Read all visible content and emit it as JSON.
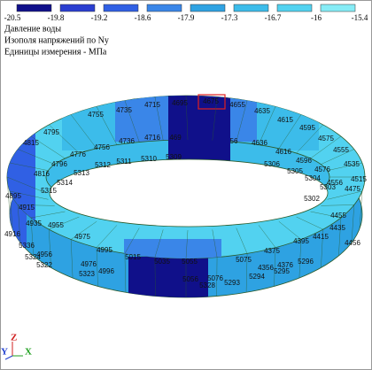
{
  "legend": {
    "ticks": [
      -20.5,
      -19.8,
      -19.2,
      -18.6,
      -17.9,
      -17.3,
      -16.7,
      -16,
      -15.4
    ],
    "colors": [
      "#10108a",
      "#2a3ed0",
      "#3060e4",
      "#3a86e8",
      "#2ea2e2",
      "#3cbcea",
      "#52d2f0",
      "#86ecf6"
    ]
  },
  "header": {
    "lines": [
      "Давление воды",
      "Изополя напряжений по Ny",
      "Единицы измерения - МПа"
    ]
  },
  "labels": [
    4815,
    4795,
    4755,
    4735,
    4715,
    4695,
    4675,
    4655,
    4635,
    4615,
    4595,
    4575,
    4555,
    4535,
    4515,
    4816,
    4796,
    4776,
    4756,
    4736,
    4716,
    469,
    56,
    4636,
    4616,
    4596,
    4576,
    4556,
    5315,
    5314,
    5313,
    5312,
    5311,
    5310,
    5309,
    5306,
    5305,
    5304,
    5303,
    5302,
    4895,
    4915,
    4935,
    4916,
    4955,
    4975,
    4995,
    5015,
    5035,
    5055,
    5075,
    4375,
    4395,
    4415,
    4435,
    4455,
    4475,
    4456,
    5336,
    4956,
    5324,
    5322,
    4976,
    5323,
    4996,
    5056,
    5076,
    5328,
    5293,
    5294,
    4356,
    4376,
    5295,
    5296
  ],
  "axes": {
    "y": "Y",
    "z": "Z",
    "x": "X"
  }
}
